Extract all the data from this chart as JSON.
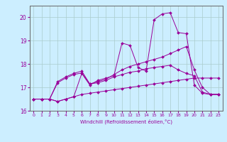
{
  "background_color": "#cceeff",
  "line_color": "#990099",
  "grid_color": "#aacccc",
  "xlabel": "Windchill (Refroidissement éolien,°C)",
  "x": [
    0,
    1,
    2,
    3,
    4,
    5,
    6,
    7,
    8,
    9,
    10,
    11,
    12,
    13,
    14,
    15,
    16,
    17,
    18,
    19,
    20,
    21,
    22,
    23
  ],
  "line1": [
    16.5,
    16.5,
    16.5,
    16.4,
    16.5,
    16.6,
    16.7,
    16.75,
    16.8,
    16.85,
    16.9,
    16.95,
    17.0,
    17.05,
    17.1,
    17.15,
    17.2,
    17.25,
    17.3,
    17.35,
    17.4,
    17.4,
    17.4,
    17.4
  ],
  "line2": [
    16.5,
    16.5,
    16.5,
    17.2,
    17.4,
    17.55,
    17.62,
    17.15,
    17.2,
    17.3,
    17.45,
    17.55,
    17.65,
    17.7,
    17.8,
    17.85,
    17.9,
    17.95,
    17.75,
    17.6,
    17.5,
    16.8,
    16.7,
    16.7
  ],
  "line3": [
    16.5,
    16.5,
    16.5,
    17.25,
    17.45,
    17.6,
    17.7,
    17.15,
    17.25,
    17.35,
    17.55,
    17.75,
    17.9,
    18.0,
    18.1,
    18.2,
    18.3,
    18.45,
    18.6,
    18.75,
    17.75,
    17.0,
    16.7,
    16.7
  ],
  "line4": [
    16.5,
    16.5,
    16.5,
    16.4,
    16.5,
    16.6,
    17.6,
    17.1,
    17.3,
    17.4,
    17.5,
    18.9,
    18.8,
    17.85,
    17.7,
    19.9,
    20.15,
    20.2,
    19.35,
    19.3,
    17.1,
    16.75,
    16.7,
    16.7
  ],
  "ylim": [
    16.0,
    20.5
  ],
  "xlim": [
    -0.5,
    23.5
  ],
  "yticks": [
    16,
    17,
    18,
    19,
    20
  ],
  "xticks": [
    0,
    1,
    2,
    3,
    4,
    5,
    6,
    7,
    8,
    9,
    10,
    11,
    12,
    13,
    14,
    15,
    16,
    17,
    18,
    19,
    20,
    21,
    22,
    23
  ]
}
